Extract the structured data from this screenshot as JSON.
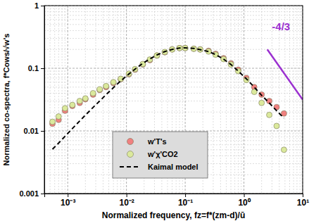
{
  "chart_data": {
    "type": "scatter",
    "xlabel": "Normalized frequency, fz=f*(zm-d)/ū",
    "ylabel": "Normalized co-spectra, f*Cows/√w's",
    "log": true,
    "grid": true,
    "legend": "bottom",
    "xlim": [
      0.0004,
      10
    ],
    "ylim": [
      0.001,
      1
    ],
    "xticks": [
      {
        "value": 0.001,
        "label": "10⁻³"
      },
      {
        "value": 0.01,
        "label": "10⁻²"
      },
      {
        "value": 0.1,
        "label": "10⁻¹"
      },
      {
        "value": 1,
        "label": "10⁰"
      },
      {
        "value": 10,
        "label": "10¹"
      }
    ],
    "yticks": [
      0.001,
      0.01,
      0.1,
      1
    ],
    "x": [
      0.00055,
      0.0007,
      0.0009,
      0.0012,
      0.0016,
      0.002,
      0.0027,
      0.0035,
      0.0045,
      0.006,
      0.008,
      0.011,
      0.014,
      0.019,
      0.025,
      0.033,
      0.045,
      0.06,
      0.08,
      0.1,
      0.14,
      0.18,
      0.25,
      0.33,
      0.45,
      0.6,
      0.8,
      1.1,
      1.5,
      2.0,
      2.7,
      3.6,
      4.8
    ],
    "series": [
      {
        "name": "w'T's",
        "color": "#f08080",
        "marker": "circle",
        "values": [
          0.013,
          0.015,
          0.021,
          0.025,
          0.028,
          0.032,
          0.038,
          0.045,
          0.05,
          0.058,
          0.067,
          0.08,
          0.095,
          0.115,
          0.135,
          0.16,
          0.18,
          0.2,
          0.21,
          0.21,
          0.205,
          0.2,
          0.19,
          0.17,
          0.145,
          0.12,
          0.095,
          0.07,
          0.05,
          0.038,
          0.03,
          0.024,
          0.019
        ]
      },
      {
        "name": "w'χ'CO2",
        "color": "#dbe99c",
        "marker": "circle",
        "values": [
          0.014,
          0.017,
          0.023,
          0.026,
          0.03,
          0.033,
          0.04,
          0.046,
          0.052,
          0.06,
          0.068,
          0.082,
          0.097,
          0.117,
          0.138,
          0.16,
          0.182,
          0.2,
          0.21,
          0.21,
          0.205,
          0.2,
          0.185,
          0.165,
          0.14,
          0.115,
          0.09,
          0.065,
          0.042,
          0.028,
          0.018,
          0.012,
          0.005
        ]
      },
      {
        "name": "Kaimal model",
        "type": "line",
        "color": "#000000",
        "line_style": "dashed",
        "values": [
          0.0051,
          0.0064,
          0.0082,
          0.0109,
          0.0144,
          0.0179,
          0.0237,
          0.03,
          0.038,
          0.049,
          0.063,
          0.081,
          0.097,
          0.12,
          0.141,
          0.163,
          0.185,
          0.2,
          0.21,
          0.212,
          0.208,
          0.198,
          0.185,
          0.165,
          0.14,
          0.115,
          0.09,
          0.068,
          0.05,
          0.037,
          0.028,
          0.021,
          0.016
        ]
      }
    ],
    "annotations": [
      {
        "text": "-4/3",
        "x": 3.0,
        "y": 0.4,
        "color": "#9b30d0",
        "line_x": [
          2.5,
          10
        ],
        "line_y": [
          0.2,
          0.0315
        ]
      }
    ]
  }
}
